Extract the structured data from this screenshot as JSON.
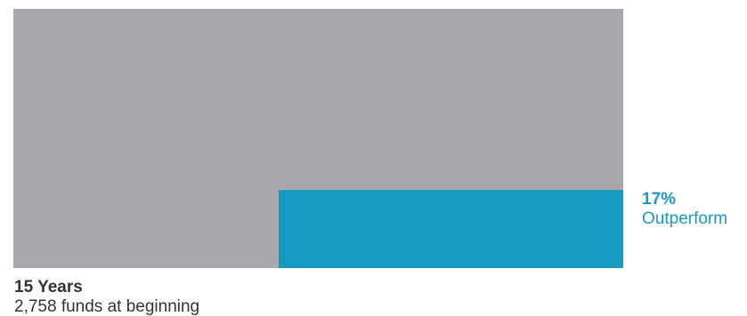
{
  "chart_data": {
    "type": "area",
    "period_label": "15 Years",
    "funds_label": "2,758 funds at beginning",
    "outperform_percent_label": "17%",
    "outperform_label": "Outperform",
    "segments": [
      {
        "name": "Funds",
        "fraction": 1.0
      },
      {
        "name": "Outperform",
        "fraction": 0.17
      }
    ]
  },
  "colors": {
    "total_block": "#a6a8ab",
    "outperform_block": "#159bc2",
    "accent_text": "#159bc2",
    "body_text": "#333333"
  }
}
